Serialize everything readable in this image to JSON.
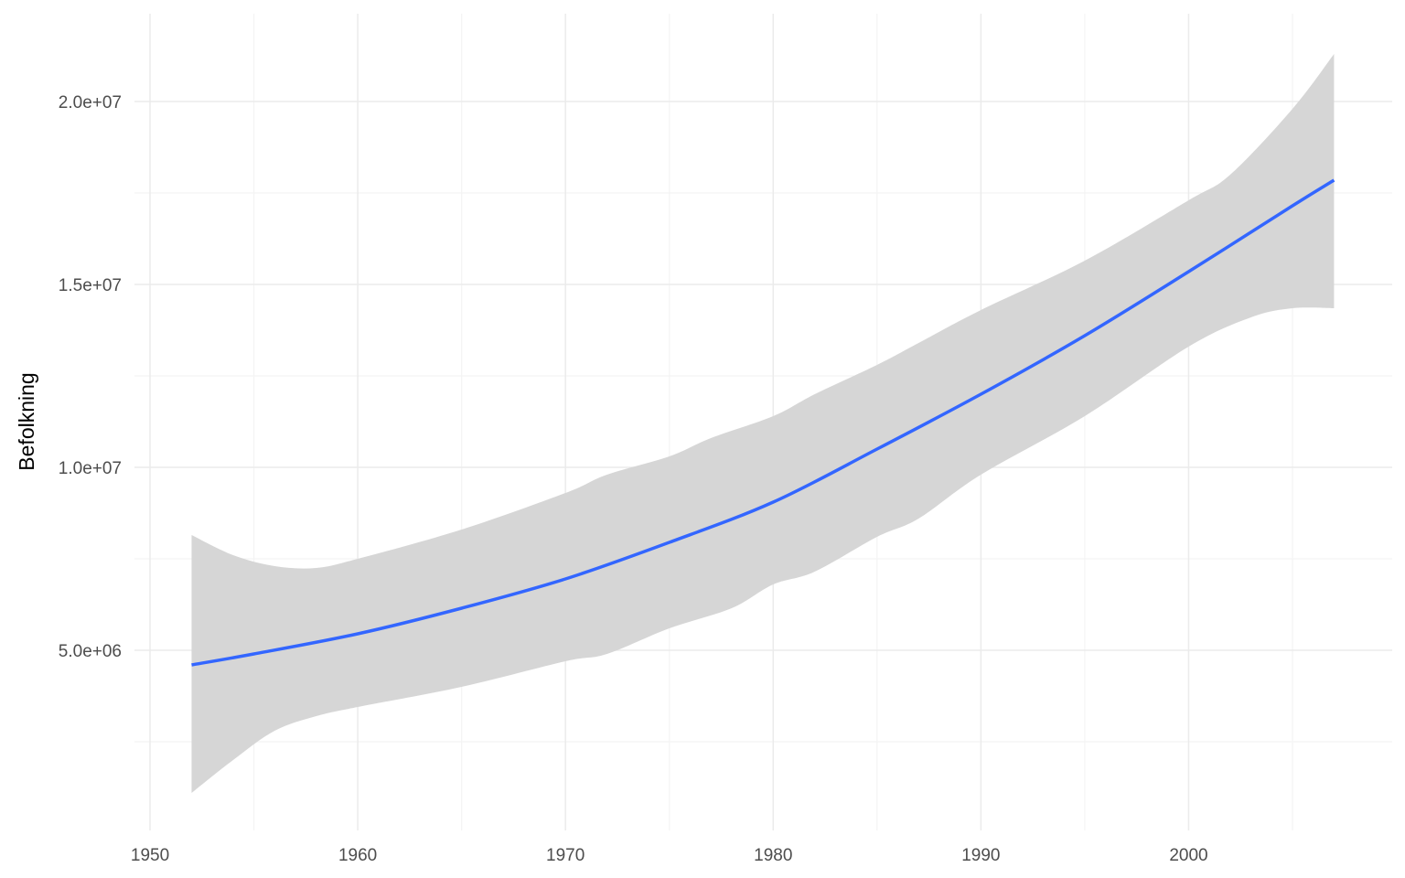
{
  "chart_data": {
    "type": "line",
    "title": "",
    "xlabel": "",
    "ylabel": "Befolkning",
    "xlim": [
      1949.25,
      2009.8
    ],
    "ylim": [
      75000,
      22400000
    ],
    "x_ticks": [
      1950,
      1960,
      1970,
      1980,
      1990,
      2000
    ],
    "x_tick_labels": [
      "1950",
      "1960",
      "1970",
      "1980",
      "1990",
      "2000"
    ],
    "y_ticks": [
      5000000,
      10000000,
      15000000,
      20000000
    ],
    "y_tick_labels": [
      "5.0e+06",
      "1.0e+07",
      "1.5e+07",
      "2.0e+07"
    ],
    "grid": true,
    "colors": {
      "line": "#3366FF",
      "band": "#d6d6d6",
      "grid_major": "#ebebeb",
      "grid_minor": "#f4f4f4"
    },
    "series": [
      {
        "name": "smooth",
        "x": [
          1952,
          1955,
          1960,
          1965,
          1970,
          1975,
          1980,
          1985,
          1990,
          1995,
          2000,
          2005,
          2007
        ],
        "values": [
          4600000,
          4900000,
          5450000,
          6150000,
          6950000,
          7950000,
          9050000,
          10500000,
          12000000,
          13600000,
          15350000,
          17150000,
          17850000
        ]
      }
    ],
    "confidence_band": {
      "upper": {
        "x": [
          1952,
          1954,
          1956,
          1958,
          1960,
          1965,
          1970,
          1972,
          1975,
          1977,
          1980,
          1982,
          1985,
          1987,
          1990,
          1995,
          2000,
          2002,
          2005,
          2007
        ],
        "values": [
          8150000,
          7600000,
          7300000,
          7250000,
          7500000,
          8300000,
          9300000,
          9800000,
          10300000,
          10800000,
          11400000,
          12000000,
          12800000,
          13400000,
          14300000,
          15650000,
          17300000,
          18000000,
          19800000,
          21300000
        ]
      },
      "lower": {
        "x": [
          1952,
          1954,
          1956,
          1958,
          1960,
          1965,
          1970,
          1972,
          1975,
          1978,
          1980,
          1982,
          1985,
          1987,
          1990,
          1995,
          2000,
          2003,
          2005,
          2007
        ],
        "values": [
          1100000,
          2000000,
          2800000,
          3200000,
          3450000,
          4000000,
          4700000,
          4900000,
          5600000,
          6150000,
          6800000,
          7150000,
          8100000,
          8600000,
          9800000,
          11400000,
          13300000,
          14100000,
          14350000,
          14350000
        ]
      }
    }
  }
}
